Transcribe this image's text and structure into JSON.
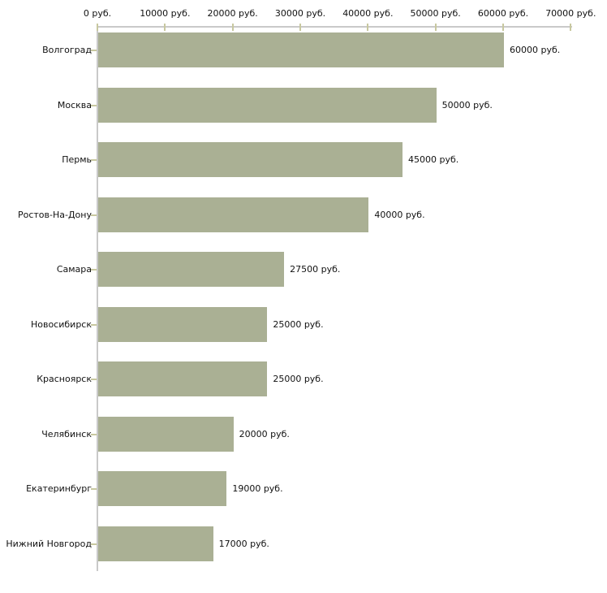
{
  "chart_data": {
    "type": "bar",
    "orientation": "horizontal",
    "title": "",
    "xlabel": "",
    "ylabel": "",
    "unit": "руб.",
    "categories": [
      "Волгоград",
      "Москва",
      "Пермь",
      "Ростов-На-Дону",
      "Самара",
      "Новосибирск",
      "Красноярск",
      "Челябинск",
      "Екатеринбург",
      "Нижний Новгород"
    ],
    "values": [
      60000,
      50000,
      45000,
      40000,
      27500,
      25000,
      25000,
      20000,
      19000,
      17000
    ],
    "value_labels": [
      "60000 руб.",
      "50000 руб.",
      "45000 руб.",
      "40000 руб.",
      "27500 руб.",
      "25000 руб.",
      "25000 руб.",
      "20000 руб.",
      "19000 руб.",
      "17000 руб."
    ],
    "x_ticks": [
      0,
      10000,
      20000,
      30000,
      40000,
      50000,
      60000,
      70000
    ],
    "x_tick_labels": [
      "0 руб.",
      "10000 руб.",
      "20000 руб.",
      "30000 руб.",
      "40000 руб.",
      "50000 руб.",
      "60000 руб.",
      "70000 руб."
    ],
    "xlim": [
      0,
      70000
    ],
    "axis_position": "top",
    "grid": false,
    "legend": null
  },
  "style": {
    "bar_color": "#aab094",
    "axis_line_color": "#c9c9c9",
    "tick_color": "#c8c8a0",
    "text_color": "#111111",
    "background": "#ffffff"
  }
}
